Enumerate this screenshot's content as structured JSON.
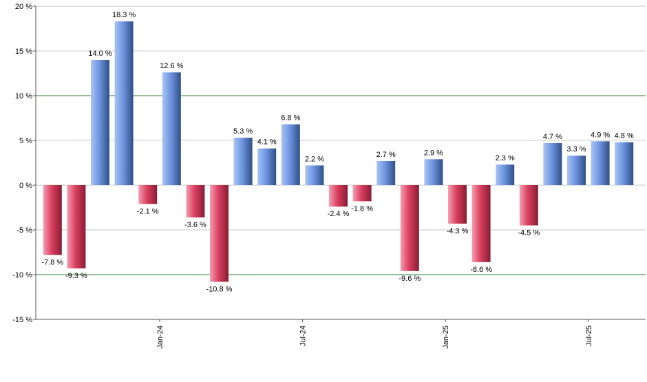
{
  "chart_data": {
    "type": "bar",
    "unit_suffix": " %",
    "ylim": [
      -15,
      20
    ],
    "yticks": [
      -15,
      -10,
      -5,
      0,
      5,
      10,
      15,
      20
    ],
    "reference_lines": [
      10,
      -10
    ],
    "grid": "horizontal",
    "values": [
      -7.8,
      -9.3,
      14.0,
      18.3,
      -2.1,
      12.6,
      -3.6,
      -10.8,
      5.3,
      4.1,
      6.8,
      2.2,
      -2.4,
      -1.8,
      2.7,
      -9.6,
      2.9,
      -4.3,
      -8.6,
      2.3,
      -4.5,
      4.7,
      3.3,
      4.9,
      4.8
    ],
    "x_tick_labels": [
      {
        "label": "Jan-24",
        "after_bar_index": 4
      },
      {
        "label": "Jul-24",
        "after_bar_index": 10
      },
      {
        "label": "Jan-25",
        "after_bar_index": 16
      },
      {
        "label": "Jul-25",
        "after_bar_index": 22
      }
    ],
    "colors": {
      "positive_light": "#a9c4f5",
      "positive_mid": "#6f95e0",
      "positive_dark": "#2f4f86",
      "negative_light": "#f59fb0",
      "negative_mid": "#d94060",
      "negative_dark": "#8a1c33",
      "grid": "#c8c8c8",
      "reference": "#2e7d32",
      "axis": "#555555"
    }
  }
}
